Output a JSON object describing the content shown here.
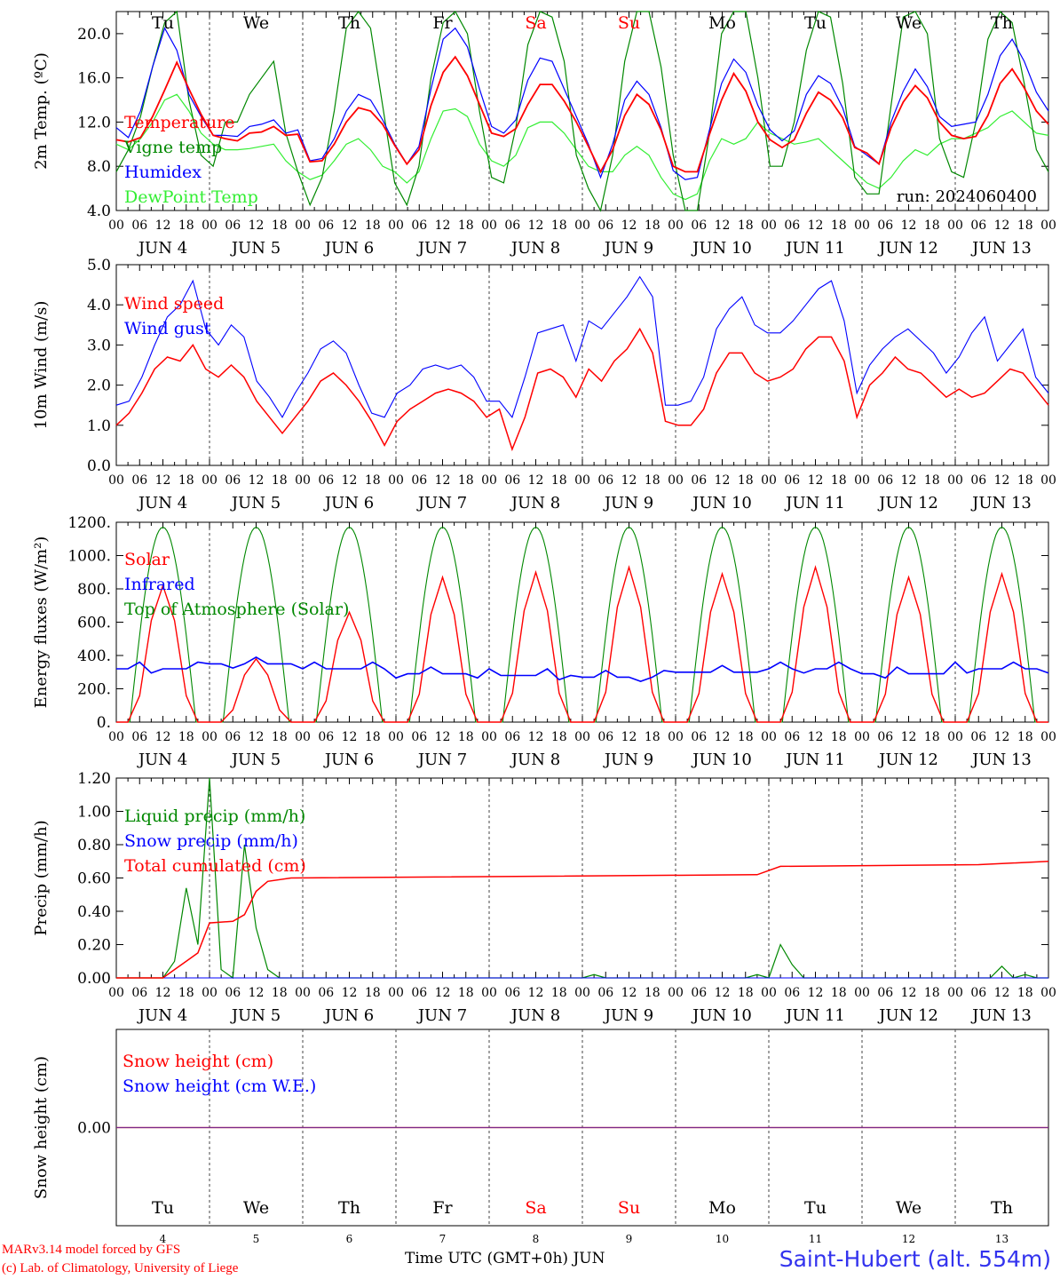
{
  "chart_data": [
    {
      "type": "line",
      "ylabel": "2m Temp. (ºC)",
      "ylim": [
        4,
        22
      ],
      "yticks": [
        "4.0",
        "8.0",
        "12.0",
        "16.0",
        "20.0"
      ],
      "run_label": "run: 2024060400",
      "weekdays": [
        "Tu",
        "We",
        "Th",
        "Fr",
        "Sa",
        "Su",
        "Mo",
        "Tu",
        "We",
        "Th"
      ],
      "x_unit": "hours since 2024-06-04 00 UTC, 3-hourly",
      "series": [
        {
          "name": "Temperature",
          "color": "#ff0000",
          "values": [
            10.4,
            10.2,
            10.6,
            12.5,
            14.9,
            17.4,
            15.0,
            12.7,
            10.8,
            10.5,
            10.3,
            11.0,
            11.1,
            11.6,
            10.8,
            10.9,
            8.4,
            8.5,
            10.0,
            12.0,
            13.3,
            13.0,
            11.8,
            9.9,
            8.2,
            9.5,
            13.5,
            16.5,
            17.9,
            16.2,
            13.6,
            11.0,
            10.7,
            11.4,
            13.6,
            15.4,
            15.4,
            13.9,
            12.0,
            9.8,
            7.5,
            9.5,
            12.6,
            14.5,
            13.6,
            11.3,
            8.0,
            7.5,
            7.5,
            10.9,
            14.0,
            16.4,
            14.8,
            12.0,
            10.4,
            9.7,
            10.4,
            12.8,
            14.7,
            14.0,
            12.4,
            9.7,
            9.2,
            8.2,
            11.5,
            13.8,
            15.3,
            14.2,
            12.0,
            10.8,
            10.5,
            10.7,
            12.6,
            15.5,
            16.8,
            15.1,
            13.0,
            11.8
          ]
        },
        {
          "name": "Vigne temp",
          "color": "#008800",
          "values": [
            7.5,
            9.5,
            12.5,
            17.0,
            21.0,
            22.0,
            14.0,
            9.0,
            8.0,
            12.0,
            12.0,
            14.5,
            16.0,
            17.5,
            11.0,
            7.5,
            4.5,
            7.0,
            13.0,
            20.5,
            22.0,
            20.5,
            13.5,
            6.5,
            4.5,
            8.0,
            16.0,
            21.0,
            22.0,
            20.0,
            13.0,
            7.0,
            6.5,
            11.5,
            19.0,
            22.0,
            21.5,
            17.5,
            9.0,
            6.0,
            4.0,
            9.0,
            17.5,
            22.0,
            22.0,
            17.0,
            9.0,
            4.0,
            4.0,
            11.0,
            20.0,
            22.0,
            22.0,
            16.0,
            8.0,
            8.0,
            12.0,
            18.5,
            22.0,
            21.5,
            15.5,
            7.0,
            5.5,
            5.5,
            13.5,
            21.5,
            22.0,
            20.0,
            10.5,
            7.5,
            7.0,
            12.0,
            19.5,
            22.0,
            21.0,
            15.5,
            9.5,
            7.5
          ]
        },
        {
          "name": "Humidex",
          "color": "#0000ff",
          "values": [
            11.5,
            10.6,
            13.0,
            17.0,
            20.5,
            18.5,
            14.5,
            12.5,
            10.8,
            10.8,
            10.7,
            11.6,
            11.8,
            12.2,
            11.0,
            11.3,
            8.5,
            8.7,
            10.5,
            13.0,
            14.5,
            14.0,
            12.2,
            10.0,
            8.2,
            9.8,
            15.0,
            19.5,
            20.5,
            18.8,
            15.0,
            11.6,
            11.0,
            12.2,
            15.8,
            17.8,
            17.5,
            15.0,
            12.5,
            10.0,
            7.0,
            10.0,
            14.0,
            15.7,
            14.5,
            11.5,
            7.6,
            6.8,
            7.0,
            11.3,
            15.5,
            17.7,
            16.5,
            13.5,
            11.3,
            10.3,
            11.2,
            14.5,
            16.2,
            15.5,
            13.3,
            9.8,
            9.0,
            8.2,
            12.0,
            14.8,
            16.8,
            15.2,
            12.5,
            11.6,
            11.8,
            12.0,
            14.5,
            18.0,
            19.5,
            17.5,
            14.7,
            13.0
          ]
        },
        {
          "name": "DewPoint Temp",
          "color": "#33ee33",
          "values": [
            10.0,
            9.5,
            10.5,
            12.0,
            14.0,
            14.5,
            13.0,
            11.0,
            10.0,
            9.5,
            9.5,
            9.6,
            9.8,
            10.0,
            8.5,
            7.5,
            6.8,
            7.2,
            8.5,
            10.0,
            10.5,
            9.5,
            8.0,
            7.5,
            6.5,
            7.5,
            10.5,
            13.0,
            13.2,
            12.5,
            10.0,
            8.5,
            8.0,
            9.0,
            11.5,
            12.0,
            12.0,
            11.0,
            9.5,
            8.0,
            7.5,
            7.5,
            9.0,
            9.8,
            9.0,
            7.0,
            5.5,
            5.0,
            5.5,
            8.5,
            10.5,
            10.0,
            10.5,
            12.0,
            11.0,
            10.5,
            10.0,
            10.2,
            10.5,
            9.5,
            8.5,
            7.5,
            6.5,
            6.0,
            7.0,
            8.5,
            9.5,
            9.0,
            10.0,
            10.5,
            10.5,
            11.0,
            11.5,
            12.5,
            13.0,
            12.0,
            11.0,
            10.8
          ]
        }
      ],
      "bottom_ticks": [
        "00",
        "06",
        "12",
        "18",
        "00",
        "06",
        "12",
        "18",
        "00",
        "06",
        "12",
        "18",
        "00",
        "06",
        "12",
        "18",
        "00",
        "06",
        "12",
        "18",
        "00",
        "06",
        "12",
        "18",
        "00",
        "06",
        "12",
        "18",
        "00",
        "06",
        "12",
        "18",
        "00",
        "06",
        "12",
        "18",
        "00",
        "06",
        "12",
        "18",
        "00"
      ],
      "date_labels": [
        "JUN  4",
        "JUN  5",
        "JUN  6",
        "JUN  7",
        "JUN  8",
        "JUN  9",
        "JUN 10",
        "JUN 11",
        "JUN 12",
        "JUN 13"
      ]
    },
    {
      "type": "line",
      "ylabel": "10m Wind (m/s)",
      "ylim": [
        0,
        5
      ],
      "yticks": [
        "0.0",
        "1.0",
        "2.0",
        "3.0",
        "4.0",
        "5.0"
      ],
      "series": [
        {
          "name": "Wind speed",
          "color": "#ff0000",
          "values": [
            1.0,
            1.3,
            1.8,
            2.4,
            2.7,
            2.6,
            3.0,
            2.4,
            2.2,
            2.5,
            2.2,
            1.6,
            1.2,
            0.8,
            1.2,
            1.6,
            2.1,
            2.3,
            2.0,
            1.6,
            1.1,
            0.5,
            1.1,
            1.4,
            1.6,
            1.8,
            1.9,
            1.8,
            1.6,
            1.2,
            1.4,
            0.4,
            1.2,
            2.3,
            2.4,
            2.2,
            1.7,
            2.4,
            2.1,
            2.6,
            2.9,
            3.4,
            2.8,
            1.1,
            1.0,
            1.0,
            1.4,
            2.3,
            2.8,
            2.8,
            2.3,
            2.1,
            2.2,
            2.4,
            2.9,
            3.2,
            3.2,
            2.6,
            1.2,
            2.0,
            2.3,
            2.7,
            2.4,
            2.3,
            2.0,
            1.7,
            1.9,
            1.7,
            1.8,
            2.1,
            2.4,
            2.3,
            1.9,
            1.5
          ]
        },
        {
          "name": "Wind gust",
          "color": "#0000ff",
          "values": [
            1.5,
            1.6,
            2.2,
            3.0,
            3.7,
            4.0,
            4.6,
            3.4,
            3.0,
            3.5,
            3.2,
            2.1,
            1.7,
            1.2,
            1.8,
            2.3,
            2.9,
            3.1,
            2.8,
            2.0,
            1.3,
            1.2,
            1.8,
            2.0,
            2.4,
            2.5,
            2.4,
            2.5,
            2.2,
            1.6,
            1.6,
            1.2,
            2.2,
            3.3,
            3.4,
            3.5,
            2.6,
            3.6,
            3.4,
            3.8,
            4.2,
            4.7,
            4.2,
            1.5,
            1.5,
            1.6,
            2.2,
            3.4,
            3.9,
            4.2,
            3.5,
            3.3,
            3.3,
            3.6,
            4.0,
            4.4,
            4.6,
            3.6,
            1.8,
            2.5,
            2.9,
            3.2,
            3.4,
            3.1,
            2.8,
            2.3,
            2.7,
            3.3,
            3.7,
            2.6,
            3.0,
            3.4,
            2.2,
            1.8
          ]
        }
      ]
    },
    {
      "type": "line",
      "ylabel": "Energy fluxes (W/m²)",
      "ylim": [
        0,
        1200
      ],
      "yticks": [
        "0.",
        "200.",
        "400.",
        "600.",
        "800.",
        "1000.",
        "1200."
      ],
      "series": [
        {
          "name": "Solar",
          "color": "#ff0000",
          "peaks": [
            820,
            380,
            660,
            870,
            900,
            930,
            890,
            930,
            870,
            890
          ]
        },
        {
          "name": "Infrared",
          "color": "#0000ff",
          "level": [
            320,
            350,
            320,
            290,
            280,
            270,
            300,
            320,
            290,
            320
          ]
        },
        {
          "name": "Top of Atmosphere (Solar)",
          "color": "#008800",
          "peak": 1170
        }
      ]
    },
    {
      "type": "line",
      "ylabel": "Precip (mm/h)",
      "ylim": [
        0,
        1.2
      ],
      "yticks": [
        "0.00",
        "0.20",
        "0.40",
        "0.60",
        "0.80",
        "1.00",
        "1.20"
      ],
      "series": [
        {
          "name": "Liquid precip (mm/h)",
          "color": "#008800",
          "events": [
            [
              15,
              0.1
            ],
            [
              18,
              0.54
            ],
            [
              21,
              0.2
            ],
            [
              24,
              1.2
            ],
            [
              27,
              0.05
            ],
            [
              33,
              0.8
            ],
            [
              36,
              0.3
            ],
            [
              39,
              0.05
            ],
            [
              123,
              0.02
            ],
            [
              165,
              0.02
            ],
            [
              171,
              0.2
            ],
            [
              174,
              0.08
            ],
            [
              228,
              0.07
            ],
            [
              234,
              0.02
            ],
            [
              252,
              0.04
            ]
          ]
        },
        {
          "name": "Snow precip (mm/h)",
          "color": "#0000ff",
          "values": [
            0
          ]
        },
        {
          "name": "Total cumulated (cm)",
          "color": "#ff0000",
          "values": [
            [
              0,
              0
            ],
            [
              12,
              0
            ],
            [
              15,
              0.05
            ],
            [
              18,
              0.1
            ],
            [
              21,
              0.15
            ],
            [
              24,
              0.33
            ],
            [
              30,
              0.34
            ],
            [
              33,
              0.38
            ],
            [
              36,
              0.52
            ],
            [
              39,
              0.58
            ],
            [
              45,
              0.6
            ],
            [
              165,
              0.62
            ],
            [
              171,
              0.67
            ],
            [
              222,
              0.68
            ],
            [
              240,
              0.7
            ]
          ]
        }
      ]
    },
    {
      "type": "line",
      "ylabel": "Snow height (cm)",
      "ylim": [
        -1,
        1
      ],
      "yticks": [
        "0.00"
      ],
      "series": [
        {
          "name": "Snow height (cm)",
          "color": "#ff0000",
          "values": [
            0
          ]
        },
        {
          "name": "Snow height (cm W.E.)",
          "color": "#0000ff",
          "values": [
            0
          ]
        }
      ],
      "weekdays": [
        "Tu",
        "We",
        "Th",
        "Fr",
        "Sa",
        "Su",
        "Mo",
        "Tu",
        "We",
        "Th"
      ],
      "day_numbers": [
        "4",
        "5",
        "6",
        "7",
        "8",
        "9",
        "10",
        "11",
        "12",
        "13"
      ]
    }
  ],
  "colors": {
    "weekend": "#ff0000",
    "weekday": "#000000"
  },
  "footer": {
    "model_line": "MARv3.14 model forced by GFS",
    "lab_line": "(c) Lab. of Climatology, University of Liege",
    "xlabel": "Time UTC (GMT+0h) JUN",
    "station": "Saint-Hubert (alt. 554m)"
  }
}
